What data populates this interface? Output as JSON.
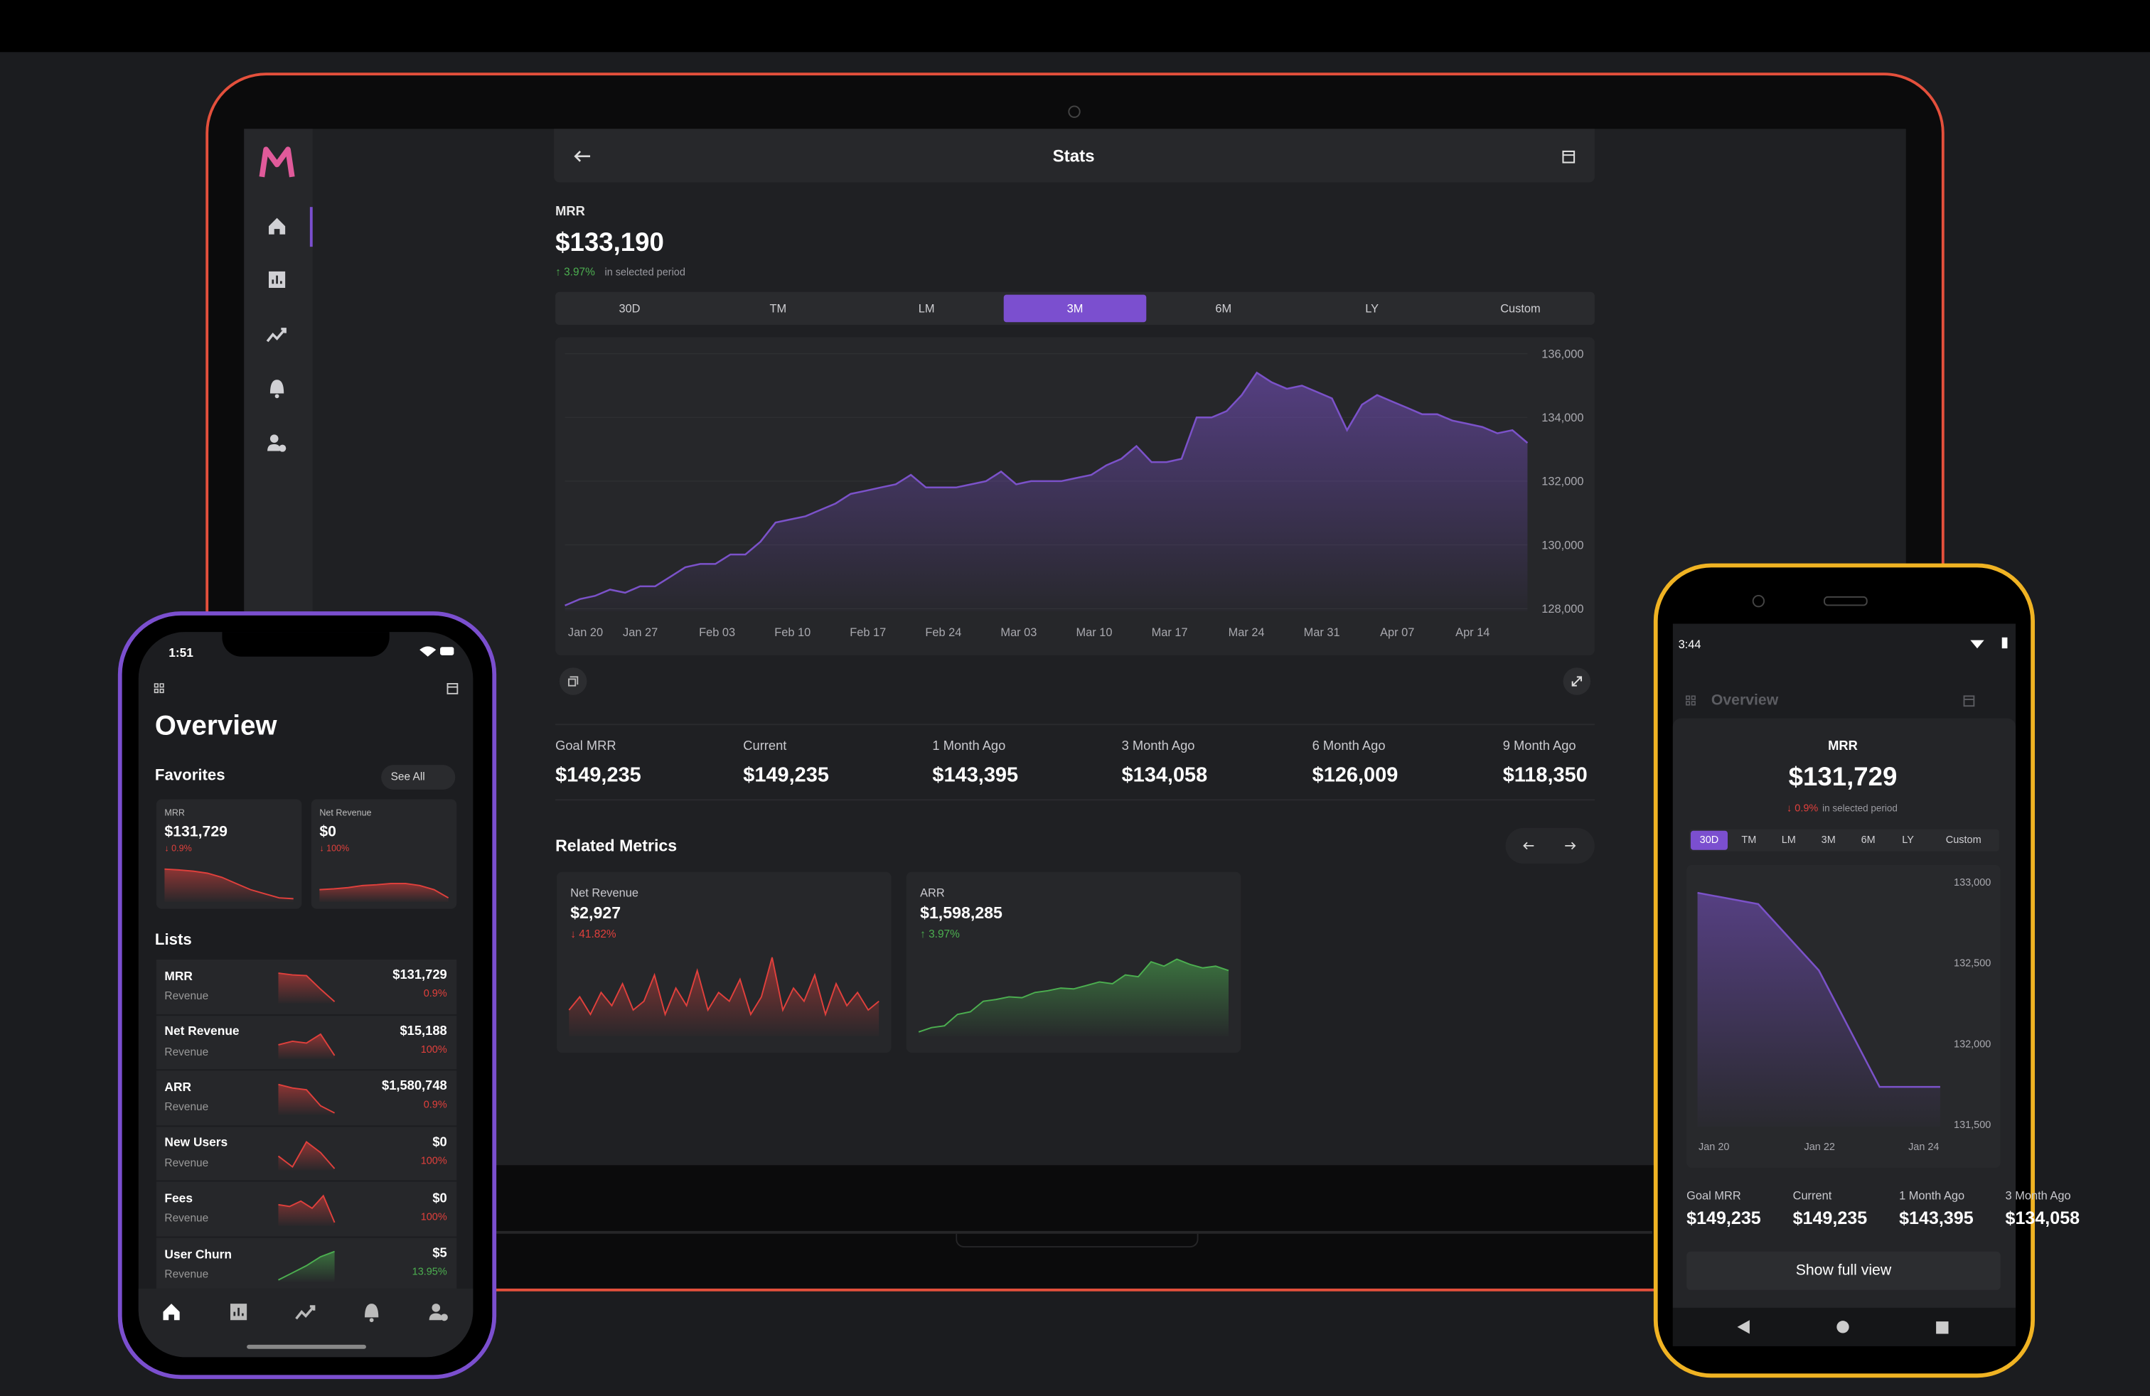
{
  "laptop": {
    "header_title": "Stats",
    "metric": "MRR",
    "value": "$133,190",
    "change": "↑ 3.97%",
    "change_color": "#4caf50",
    "change_note": "in selected period",
    "ranges": [
      "30D",
      "TM",
      "LM",
      "3M",
      "6M",
      "LY",
      "Custom"
    ],
    "selected_range": "3M",
    "chart": {
      "type": "area",
      "color": "#7b52c9",
      "grid": true,
      "x_labels": [
        "Jan 20",
        "Jan 27",
        "Feb 03",
        "Feb 10",
        "Feb 17",
        "Feb 24",
        "Mar 03",
        "Mar 10",
        "Mar 17",
        "Mar 24",
        "Mar 31",
        "Apr 07",
        "Apr 14"
      ],
      "ylim": [
        128000,
        136000
      ],
      "yticks": [
        {
          "value": 128000,
          "label": "128,000"
        },
        {
          "value": 130000,
          "label": "130,000"
        },
        {
          "value": 132000,
          "label": "132,000"
        },
        {
          "value": 134000,
          "label": "134,000"
        },
        {
          "value": 136000,
          "label": "136,000"
        }
      ],
      "values": [
        128100,
        128300,
        128400,
        128600,
        128500,
        128700,
        128700,
        129000,
        129300,
        129400,
        129400,
        129700,
        129700,
        130100,
        130700,
        130800,
        130900,
        131100,
        131300,
        131600,
        131700,
        131800,
        131900,
        132200,
        131800,
        131800,
        131800,
        131900,
        132000,
        132300,
        131900,
        132000,
        132000,
        132000,
        132100,
        132200,
        132500,
        132700,
        133100,
        132600,
        132600,
        132700,
        134000,
        134000,
        134200,
        134700,
        135400,
        135100,
        134900,
        135000,
        134800,
        134600,
        133600,
        134400,
        134700,
        134500,
        134300,
        134100,
        134100,
        133900,
        133800,
        133700,
        133500,
        133600,
        133200
      ]
    },
    "stats": [
      {
        "label": "Goal MRR",
        "value": "$149,235"
      },
      {
        "label": "Current",
        "value": "$149,235"
      },
      {
        "label": "1 Month Ago",
        "value": "$143,395"
      },
      {
        "label": "3 Month Ago",
        "value": "$134,058"
      },
      {
        "label": "6 Month Ago",
        "value": "$126,009"
      },
      {
        "label": "9 Month Ago",
        "value": "$118,350"
      }
    ],
    "related_title": "Related Metrics",
    "related": [
      {
        "name": "Net Revenue",
        "value": "$2,927",
        "change": "↓ 41.82%",
        "color": "#e0403c",
        "ylim": [
          0,
          100
        ],
        "values": [
          30,
          45,
          25,
          50,
          35,
          60,
          30,
          40,
          70,
          25,
          55,
          35,
          75,
          30,
          50,
          40,
          65,
          25,
          45,
          90,
          30,
          55,
          40,
          70,
          25,
          60,
          35,
          50,
          30,
          40
        ]
      },
      {
        "name": "ARR",
        "value": "$1,598,285",
        "change": "↑ 3.97%",
        "color": "#4caf50",
        "ylim": [
          0,
          100
        ],
        "values": [
          5,
          10,
          12,
          25,
          28,
          40,
          42,
          45,
          44,
          50,
          52,
          55,
          54,
          58,
          62,
          60,
          70,
          68,
          85,
          80,
          88,
          82,
          78,
          80,
          75
        ]
      }
    ]
  },
  "iphone": {
    "time": "1:51",
    "title": "Overview",
    "favorites_title": "Favorites",
    "see_all": "See All",
    "favorites": [
      {
        "name": "MRR",
        "value": "$131,729",
        "change": "↓ 0.9%",
        "color": "#e0403c",
        "ylim": [
          0,
          100
        ],
        "values": [
          80,
          78,
          75,
          70,
          60,
          45,
          30,
          20,
          10,
          8
        ]
      },
      {
        "name": "Net Revenue",
        "value": "$0",
        "change": "↓ 100%",
        "color": "#e0403c",
        "ylim": [
          0,
          100
        ],
        "values": [
          30,
          32,
          35,
          40,
          42,
          45,
          45,
          40,
          30,
          10
        ]
      }
    ],
    "lists_title": "Lists",
    "lists": [
      {
        "name": "MRR",
        "group": "Revenue",
        "value": "$131,729",
        "change": "0.9%",
        "color": "#e0403c",
        "ylim": [
          0,
          100
        ],
        "values": [
          85,
          80,
          78,
          40,
          5
        ]
      },
      {
        "name": "Net Revenue",
        "group": "Revenue",
        "value": "$15,188",
        "change": "100%",
        "color": "#e0403c",
        "ylim": [
          0,
          100
        ],
        "values": [
          40,
          50,
          45,
          70,
          10
        ]
      },
      {
        "name": "ARR",
        "group": "Revenue",
        "value": "$1,580,748",
        "change": "0.9%",
        "color": "#e0403c",
        "ylim": [
          0,
          100
        ],
        "values": [
          85,
          75,
          70,
          25,
          5
        ]
      },
      {
        "name": "New Users",
        "group": "Revenue",
        "value": "$0",
        "change": "100%",
        "color": "#e0403c",
        "ylim": [
          0,
          100
        ],
        "values": [
          40,
          10,
          80,
          50,
          5
        ]
      },
      {
        "name": "Fees",
        "group": "Revenue",
        "value": "$0",
        "change": "100%",
        "color": "#e0403c",
        "ylim": [
          0,
          100
        ],
        "values": [
          60,
          55,
          70,
          50,
          85,
          10
        ]
      },
      {
        "name": "User Churn",
        "group": "Revenue",
        "value": "$5",
        "change": "13.95%",
        "color": "#4caf50",
        "ylim": [
          0,
          100
        ],
        "values": [
          5,
          25,
          45,
          70,
          85
        ]
      }
    ]
  },
  "android": {
    "time": "3:44",
    "title": "Overview",
    "metric": "MRR",
    "value": "$131,729",
    "change": "↓ 0.9%",
    "change_color": "#e0403c",
    "change_note": "in selected period",
    "ranges": [
      "30D",
      "TM",
      "LM",
      "3M",
      "6M",
      "LY",
      "Custom"
    ],
    "selected_range": "30D",
    "chart": {
      "type": "area",
      "color": "#7b52c9",
      "x_labels": [
        "Jan 20",
        "Jan 22",
        "Jan 24"
      ],
      "ylim": [
        131500,
        133000
      ],
      "yticks": [
        {
          "value": 131500,
          "label": "131,500"
        },
        {
          "value": 132000,
          "label": "132,000"
        },
        {
          "value": 132500,
          "label": "132,500"
        },
        {
          "value": 133000,
          "label": "133,000"
        }
      ],
      "values": [
        132930,
        132860,
        132450,
        131730,
        131730
      ]
    },
    "stats": [
      {
        "label": "Goal MRR",
        "value": "$149,235"
      },
      {
        "label": "Current",
        "value": "$149,235"
      },
      {
        "label": "1 Month Ago",
        "value": "$143,395"
      },
      {
        "label": "3 Month Ago",
        "value": "$134,058"
      }
    ],
    "button": "Show full view"
  }
}
